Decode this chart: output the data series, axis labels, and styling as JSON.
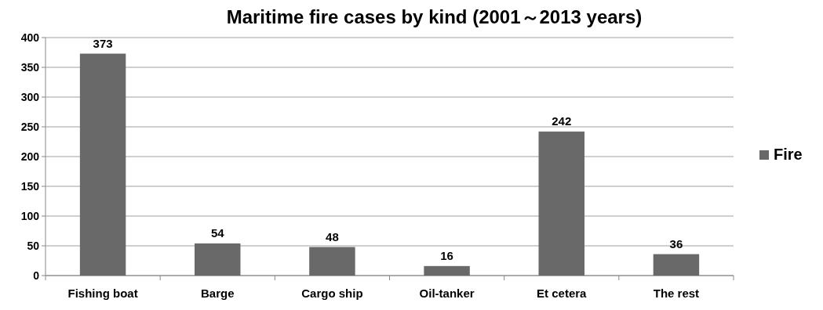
{
  "chart_data": {
    "type": "bar",
    "title": "Maritime fire cases by kind (2001～2013 years)",
    "categories": [
      "Fishing boat",
      "Barge",
      "Cargo ship",
      "Oil-tanker",
      "Et cetera",
      "The rest"
    ],
    "series": [
      {
        "name": "Fire",
        "color": "#696969",
        "values": [
          373,
          54,
          48,
          16,
          242,
          36
        ]
      }
    ],
    "ylim": [
      0,
      400
    ],
    "yticks": [
      0,
      50,
      100,
      150,
      200,
      250,
      300,
      350,
      400
    ],
    "grid": "y",
    "legend": "right",
    "data_labels": true
  }
}
